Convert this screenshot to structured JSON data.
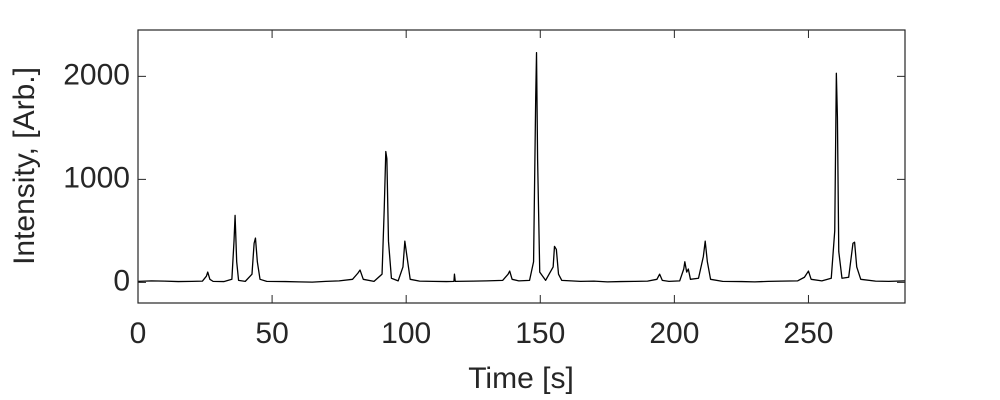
{
  "chart_data": {
    "type": "line",
    "x_label": "Time [s]",
    "y_label": "Intensity, [Arb.]",
    "x": [
      0,
      5,
      10,
      15,
      20,
      24,
      25.5,
      26,
      26.8,
      28,
      32,
      35,
      35.8,
      36.2,
      36.8,
      37.5,
      40,
      42.5,
      43.3,
      43.8,
      44.5,
      45.5,
      48,
      55,
      60,
      65,
      70,
      75,
      80,
      82,
      82.8,
      84,
      88,
      91,
      91.8,
      92.4,
      92.8,
      93.4,
      94.5,
      97,
      98.8,
      99.5,
      100.3,
      101.5,
      105,
      110,
      115,
      117.8,
      118,
      118.3,
      125,
      130,
      136,
      138,
      138.6,
      139.5,
      142,
      146,
      147.5,
      148.3,
      148.6,
      149,
      149.8,
      152,
      154.8,
      155.3,
      156,
      156.8,
      158,
      165,
      170,
      175,
      180,
      185,
      190,
      193.5,
      194.5,
      195.5,
      198,
      202,
      203.5,
      203.9,
      204.6,
      205.2,
      206,
      209,
      210.8,
      211.5,
      212.3,
      213.5,
      218,
      225,
      230,
      235,
      240,
      246,
      248.5,
      250,
      251,
      255,
      258.5,
      259.8,
      260.4,
      260.8,
      261.3,
      262.5,
      265,
      266.6,
      267.2,
      268,
      269.5,
      275,
      280,
      286
    ],
    "values": [
      10,
      15,
      12,
      8,
      10,
      12,
      60,
      100,
      30,
      10,
      8,
      30,
      400,
      650,
      200,
      20,
      10,
      80,
      380,
      430,
      200,
      30,
      10,
      8,
      5,
      3,
      10,
      15,
      30,
      90,
      120,
      30,
      10,
      80,
      700,
      1270,
      1200,
      400,
      40,
      15,
      150,
      400,
      250,
      30,
      12,
      10,
      8,
      10,
      80,
      10,
      12,
      15,
      20,
      80,
      110,
      30,
      15,
      20,
      200,
      1800,
      2230,
      1200,
      100,
      20,
      150,
      350,
      320,
      80,
      20,
      10,
      12,
      5,
      8,
      10,
      12,
      30,
      80,
      20,
      10,
      15,
      130,
      200,
      100,
      130,
      30,
      40,
      250,
      400,
      200,
      30,
      10,
      8,
      5,
      10,
      12,
      15,
      50,
      110,
      30,
      15,
      40,
      500,
      2030,
      1600,
      300,
      40,
      50,
      380,
      390,
      150,
      30,
      12,
      10,
      15
    ],
    "color": "#000000",
    "xlim": [
      0,
      286
    ],
    "ylim": [
      -200,
      2450
    ],
    "xticks": [
      0,
      50,
      100,
      150,
      200,
      250
    ],
    "yticks": [
      0,
      1000,
      2000
    ],
    "grid": false
  }
}
